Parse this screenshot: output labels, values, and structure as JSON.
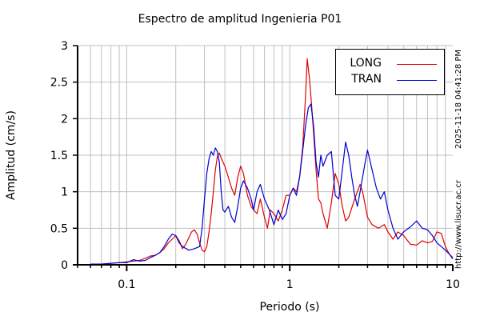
{
  "chart_data": {
    "type": "line",
    "title": "Espectro de amplitud Ingenieria P01",
    "xlabel": "Periodo (s)",
    "ylabel": "Amplitud (cm/s)",
    "xscale": "log",
    "xlim": [
      0.05,
      10
    ],
    "ylim": [
      0,
      3
    ],
    "x_ticks": [
      "0.1",
      "1",
      "10"
    ],
    "y_ticks": [
      "0",
      "0.5",
      "1",
      "1.5",
      "2",
      "2.5",
      "3"
    ],
    "grid": true,
    "legend_position": "upper right",
    "series": [
      {
        "name": "LONG",
        "color": "#e00000",
        "points": [
          [
            0.06,
            0.0
          ],
          [
            0.07,
            0.01
          ],
          [
            0.08,
            0.02
          ],
          [
            0.09,
            0.03
          ],
          [
            0.1,
            0.04
          ],
          [
            0.11,
            0.05
          ],
          [
            0.12,
            0.06
          ],
          [
            0.13,
            0.09
          ],
          [
            0.14,
            0.12
          ],
          [
            0.15,
            0.13
          ],
          [
            0.16,
            0.17
          ],
          [
            0.17,
            0.22
          ],
          [
            0.18,
            0.3
          ],
          [
            0.19,
            0.35
          ],
          [
            0.2,
            0.4
          ],
          [
            0.21,
            0.33
          ],
          [
            0.22,
            0.22
          ],
          [
            0.23,
            0.28
          ],
          [
            0.25,
            0.45
          ],
          [
            0.26,
            0.48
          ],
          [
            0.27,
            0.42
          ],
          [
            0.28,
            0.3
          ],
          [
            0.29,
            0.2
          ],
          [
            0.3,
            0.18
          ],
          [
            0.31,
            0.25
          ],
          [
            0.32,
            0.45
          ],
          [
            0.33,
            0.7
          ],
          [
            0.34,
            1.0
          ],
          [
            0.35,
            1.3
          ],
          [
            0.36,
            1.48
          ],
          [
            0.37,
            1.53
          ],
          [
            0.38,
            1.46
          ],
          [
            0.4,
            1.35
          ],
          [
            0.42,
            1.2
          ],
          [
            0.44,
            1.05
          ],
          [
            0.46,
            0.95
          ],
          [
            0.48,
            1.2
          ],
          [
            0.5,
            1.35
          ],
          [
            0.52,
            1.25
          ],
          [
            0.55,
            0.95
          ],
          [
            0.58,
            0.8
          ],
          [
            0.6,
            0.75
          ],
          [
            0.63,
            0.7
          ],
          [
            0.66,
            0.9
          ],
          [
            0.7,
            0.65
          ],
          [
            0.73,
            0.5
          ],
          [
            0.76,
            0.75
          ],
          [
            0.8,
            0.7
          ],
          [
            0.85,
            0.6
          ],
          [
            0.9,
            0.75
          ],
          [
            0.95,
            0.95
          ],
          [
            1.0,
            0.95
          ],
          [
            1.05,
            1.05
          ],
          [
            1.1,
            1.0
          ],
          [
            1.15,
            1.2
          ],
          [
            1.2,
            1.6
          ],
          [
            1.25,
            2.3
          ],
          [
            1.28,
            2.82
          ],
          [
            1.32,
            2.55
          ],
          [
            1.36,
            2.2
          ],
          [
            1.4,
            1.8
          ],
          [
            1.45,
            1.3
          ],
          [
            1.5,
            0.9
          ],
          [
            1.55,
            0.85
          ],
          [
            1.6,
            0.7
          ],
          [
            1.7,
            0.5
          ],
          [
            1.8,
            0.85
          ],
          [
            1.9,
            1.25
          ],
          [
            2.0,
            1.1
          ],
          [
            2.1,
            0.8
          ],
          [
            2.2,
            0.6
          ],
          [
            2.3,
            0.65
          ],
          [
            2.5,
            0.9
          ],
          [
            2.7,
            1.1
          ],
          [
            2.8,
            1.0
          ],
          [
            3.0,
            0.65
          ],
          [
            3.2,
            0.55
          ],
          [
            3.5,
            0.5
          ],
          [
            3.8,
            0.55
          ],
          [
            4.0,
            0.45
          ],
          [
            4.3,
            0.35
          ],
          [
            4.6,
            0.45
          ],
          [
            5.0,
            0.4
          ],
          [
            5.5,
            0.28
          ],
          [
            6.0,
            0.27
          ],
          [
            6.5,
            0.33
          ],
          [
            7.0,
            0.3
          ],
          [
            7.5,
            0.32
          ],
          [
            8.0,
            0.45
          ],
          [
            8.5,
            0.43
          ],
          [
            9.0,
            0.25
          ],
          [
            9.5,
            0.15
          ],
          [
            10.0,
            0.1
          ]
        ]
      },
      {
        "name": "TRAN",
        "color": "#0000d0",
        "points": [
          [
            0.06,
            0.01
          ],
          [
            0.07,
            0.01
          ],
          [
            0.08,
            0.02
          ],
          [
            0.09,
            0.03
          ],
          [
            0.1,
            0.03
          ],
          [
            0.105,
            0.05
          ],
          [
            0.11,
            0.07
          ],
          [
            0.12,
            0.05
          ],
          [
            0.13,
            0.06
          ],
          [
            0.14,
            0.1
          ],
          [
            0.15,
            0.13
          ],
          [
            0.16,
            0.17
          ],
          [
            0.17,
            0.25
          ],
          [
            0.18,
            0.35
          ],
          [
            0.19,
            0.42
          ],
          [
            0.2,
            0.4
          ],
          [
            0.21,
            0.3
          ],
          [
            0.22,
            0.25
          ],
          [
            0.24,
            0.2
          ],
          [
            0.26,
            0.22
          ],
          [
            0.28,
            0.25
          ],
          [
            0.29,
            0.5
          ],
          [
            0.3,
            0.9
          ],
          [
            0.31,
            1.25
          ],
          [
            0.32,
            1.45
          ],
          [
            0.33,
            1.55
          ],
          [
            0.34,
            1.5
          ],
          [
            0.35,
            1.6
          ],
          [
            0.36,
            1.55
          ],
          [
            0.37,
            1.4
          ],
          [
            0.38,
            1.0
          ],
          [
            0.39,
            0.75
          ],
          [
            0.4,
            0.72
          ],
          [
            0.42,
            0.8
          ],
          [
            0.44,
            0.65
          ],
          [
            0.46,
            0.58
          ],
          [
            0.48,
            0.8
          ],
          [
            0.5,
            1.05
          ],
          [
            0.52,
            1.15
          ],
          [
            0.55,
            1.05
          ],
          [
            0.58,
            0.9
          ],
          [
            0.6,
            0.75
          ],
          [
            0.63,
            1.0
          ],
          [
            0.66,
            1.1
          ],
          [
            0.7,
            0.9
          ],
          [
            0.75,
            0.75
          ],
          [
            0.8,
            0.55
          ],
          [
            0.85,
            0.75
          ],
          [
            0.9,
            0.62
          ],
          [
            0.95,
            0.7
          ],
          [
            1.0,
            0.95
          ],
          [
            1.05,
            1.05
          ],
          [
            1.1,
            0.95
          ],
          [
            1.15,
            1.2
          ],
          [
            1.2,
            1.55
          ],
          [
            1.25,
            1.9
          ],
          [
            1.3,
            2.15
          ],
          [
            1.35,
            2.2
          ],
          [
            1.4,
            1.9
          ],
          [
            1.45,
            1.4
          ],
          [
            1.5,
            1.2
          ],
          [
            1.55,
            1.5
          ],
          [
            1.6,
            1.35
          ],
          [
            1.7,
            1.5
          ],
          [
            1.8,
            1.55
          ],
          [
            1.9,
            0.95
          ],
          [
            2.0,
            0.9
          ],
          [
            2.1,
            1.3
          ],
          [
            2.2,
            1.68
          ],
          [
            2.3,
            1.5
          ],
          [
            2.4,
            1.2
          ],
          [
            2.5,
            0.95
          ],
          [
            2.6,
            0.8
          ],
          [
            2.7,
            1.0
          ],
          [
            2.9,
            1.4
          ],
          [
            3.0,
            1.57
          ],
          [
            3.2,
            1.3
          ],
          [
            3.4,
            1.05
          ],
          [
            3.6,
            0.9
          ],
          [
            3.8,
            1.0
          ],
          [
            4.0,
            0.75
          ],
          [
            4.3,
            0.5
          ],
          [
            4.6,
            0.35
          ],
          [
            5.0,
            0.45
          ],
          [
            5.5,
            0.52
          ],
          [
            6.0,
            0.6
          ],
          [
            6.5,
            0.5
          ],
          [
            7.0,
            0.48
          ],
          [
            7.5,
            0.4
          ],
          [
            8.0,
            0.3
          ],
          [
            8.5,
            0.25
          ],
          [
            9.0,
            0.2
          ],
          [
            9.5,
            0.15
          ],
          [
            10.0,
            0.08
          ]
        ]
      }
    ]
  },
  "watermark": {
    "timestamp": "2025-11-18 04:41:28 PM",
    "url": "http://www.lisucr.ac.cr"
  }
}
